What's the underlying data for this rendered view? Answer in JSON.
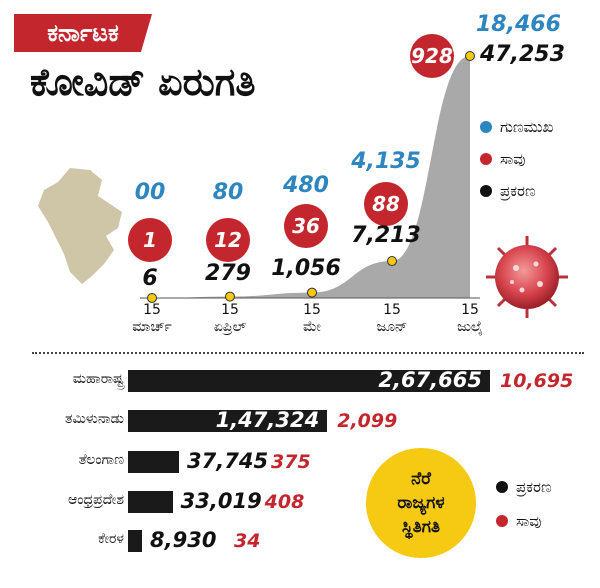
{
  "header": {
    "tag": "ಕರ್ನಾಟಕ",
    "title": "ಕೋವಿಡ್ ಏರುಗತಿ"
  },
  "legend_top": [
    {
      "label": "ಗುಣಮುಖ",
      "color": "#2e86c1"
    },
    {
      "label": "ಸಾವು",
      "color": "#c4262e"
    },
    {
      "label": "ಪ್ರಕರಣ",
      "color": "#111111"
    }
  ],
  "chart_data": [
    {
      "type": "area",
      "categories": [
        "15 ಮಾರ್ಚ್",
        "15 ಏಪ್ರಿಲ್",
        "15 ಮೇ",
        "15 ಜೂನ್",
        "15 ಜುಲೈ"
      ],
      "x_labels": [
        [
          "15",
          "ಮಾರ್ಚ್"
        ],
        [
          "15",
          "ಏಪ್ರಿಲ್"
        ],
        [
          "15",
          "ಮೇ"
        ],
        [
          "15",
          "ಜೂನ್"
        ],
        [
          "15",
          "ಜುಲೈ"
        ]
      ],
      "series": [
        {
          "name": "ಪ್ರಕರಣ",
          "values": [
            6,
            279,
            1056,
            7213,
            47253
          ],
          "labels": [
            "6",
            "279",
            "1,056",
            "7,213",
            "47,253"
          ]
        },
        {
          "name": "ಸಾವು",
          "values": [
            1,
            12,
            36,
            88,
            928
          ],
          "labels": [
            "1",
            "12",
            "36",
            "88",
            "928"
          ]
        },
        {
          "name": "ಗುಣಮುಖ",
          "values": [
            0,
            80,
            480,
            4135,
            18466
          ],
          "labels": [
            "00",
            "80",
            "480",
            "4,135",
            "18,466"
          ]
        }
      ],
      "ylim": [
        0,
        47253
      ]
    },
    {
      "type": "bar",
      "orientation": "horizontal",
      "categories": [
        "ಮಹಾರಾಷ್ಟ್ರ",
        "ತಮಿಳುನಾಡು",
        "ತೆಲಂಗಾಣ",
        "ಆಂಧ್ರಪ್ರದೇಶ",
        "ಕೇರಳ"
      ],
      "series": [
        {
          "name": "ಪ್ರಕರಣ",
          "values": [
            267665,
            147324,
            37745,
            33019,
            8930
          ],
          "labels": [
            "2,67,665",
            "1,47,324",
            "37,745",
            "33,019",
            "8,930"
          ]
        },
        {
          "name": "ಸಾವು",
          "values": [
            10695,
            2099,
            375,
            408,
            34
          ],
          "labels": [
            "10,695",
            "2,099",
            "375",
            "408",
            "34"
          ]
        }
      ],
      "xlim": [
        0,
        267665
      ]
    }
  ],
  "badge": {
    "lines": [
      "ನೆರೆ",
      "ರಾಜ್ಯಗಳ",
      "ಸ್ಥಿತಿಗತಿ"
    ]
  },
  "legend_bottom": [
    {
      "label": "ಪ್ರಕರಣ",
      "color": "#111111"
    },
    {
      "label": "ಸಾವು",
      "color": "#c4262e"
    }
  ],
  "colors": {
    "accent": "#c4262e",
    "recovered": "#2e86c1",
    "area": "#a9a9a9",
    "marker": "#f6c913"
  },
  "icons": [
    "karnataka-map-icon",
    "virus-icon"
  ]
}
